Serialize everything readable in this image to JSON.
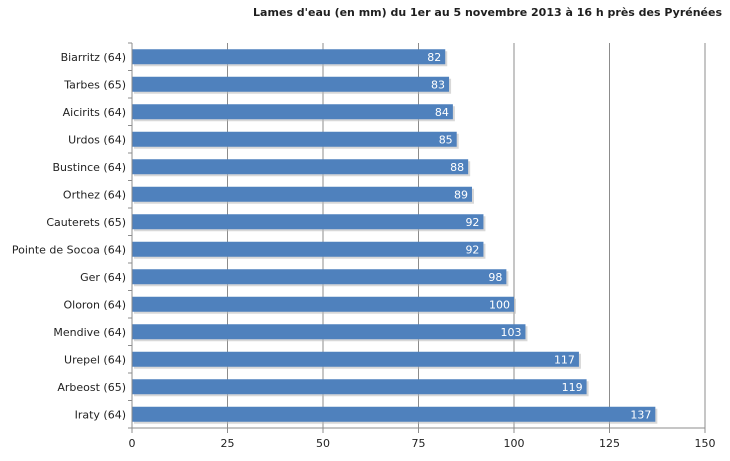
{
  "chart_data": {
    "type": "bar",
    "orientation": "horizontal",
    "title": "Lames d'eau (en mm) du 1er au 5 novembre 2013 à 16 h près des Pyrénées",
    "categories": [
      "Biarritz (64)",
      "Tarbes (65)",
      "Aicirits (64)",
      "Urdos (64)",
      "Bustince (64)",
      "Orthez (64)",
      "Cauterets (65)",
      "Pointe de Socoa (64)",
      "Ger (64)",
      "Oloron (64)",
      "Mendive (64)",
      "Urepel (64)",
      "Arbeost (65)",
      "Iraty (64)"
    ],
    "values": [
      82,
      83,
      84,
      85,
      88,
      89,
      92,
      92,
      98,
      100,
      103,
      117,
      119,
      137
    ],
    "xlim": [
      0,
      150
    ],
    "xticks": [
      0,
      25,
      50,
      75,
      100,
      125,
      150
    ],
    "grid": true,
    "legend": "none",
    "bar_color": "#4f81bd"
  }
}
